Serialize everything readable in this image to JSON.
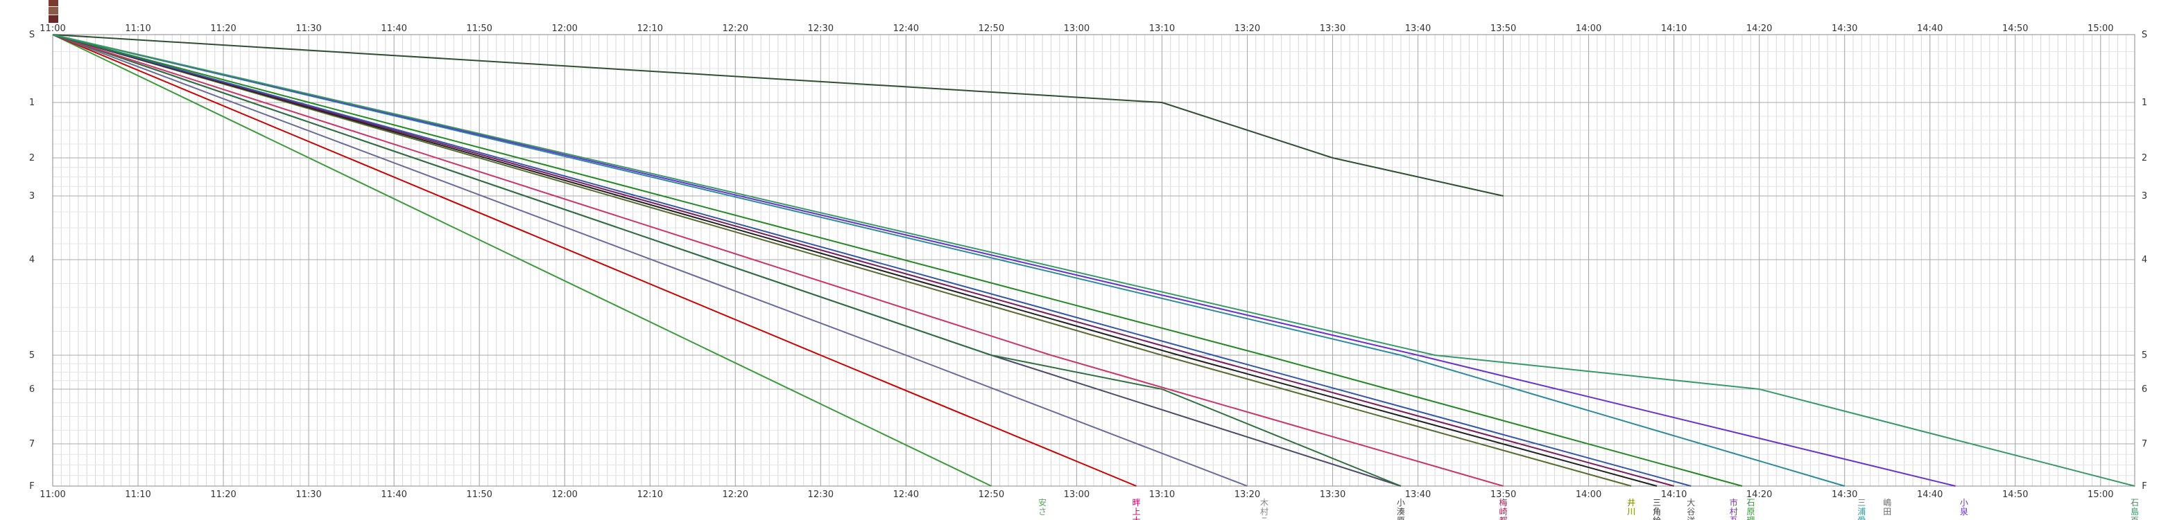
{
  "chart_data": {
    "type": "line",
    "title": "",
    "xlabel": "",
    "ylabel": "",
    "x_ticks": [
      "11:00",
      "11:10",
      "11:20",
      "11:30",
      "11:40",
      "11:50",
      "12:00",
      "12:10",
      "12:20",
      "12:30",
      "12:40",
      "12:50",
      "13:00",
      "13:10",
      "13:20",
      "13:30",
      "13:40",
      "13:50",
      "14:00",
      "14:10",
      "14:20",
      "14:30",
      "14:40",
      "14:50",
      "15:00"
    ],
    "xlim": [
      "11:00",
      "15:04"
    ],
    "y_ticks": [
      "S",
      "1",
      "2",
      "3",
      "4",
      "5",
      "6",
      "7",
      "F"
    ],
    "grid": true,
    "series": [
      {
        "color": "#2f4f2f",
        "points": [
          [
            "11:00",
            "S"
          ],
          [
            "13:10",
            "1"
          ],
          [
            "13:30",
            "2"
          ],
          [
            "13:50",
            "3"
          ]
        ]
      },
      {
        "color": "#3a9a3a",
        "points": [
          [
            "11:00",
            "S"
          ],
          [
            "12:50",
            "F"
          ]
        ]
      },
      {
        "color": "#cc0000",
        "points": [
          [
            "11:00",
            "S"
          ],
          [
            "12:30",
            "5"
          ],
          [
            "13:07",
            "F"
          ]
        ]
      },
      {
        "color": "#6a6a9a",
        "points": [
          [
            "11:00",
            "S"
          ],
          [
            "12:40",
            "5"
          ],
          [
            "13:20",
            "F"
          ]
        ]
      },
      {
        "color": "#4a4a6a",
        "points": [
          [
            "11:00",
            "S"
          ],
          [
            "12:50",
            "5"
          ],
          [
            "13:38",
            "F"
          ]
        ]
      },
      {
        "color": "#2e6e3e",
        "points": [
          [
            "11:00",
            "S"
          ],
          [
            "12:50",
            "5"
          ],
          [
            "13:10",
            "6"
          ],
          [
            "13:38",
            "F"
          ]
        ]
      },
      {
        "color": "#cc3366",
        "points": [
          [
            "11:00",
            "S"
          ],
          [
            "12:57",
            "5"
          ],
          [
            "13:50",
            "F"
          ]
        ]
      },
      {
        "color": "#556b2f",
        "points": [
          [
            "11:00",
            "S"
          ],
          [
            "13:10",
            "5"
          ],
          [
            "14:05",
            "F"
          ]
        ]
      },
      {
        "color": "#1f1f1f",
        "points": [
          [
            "11:00",
            "S"
          ],
          [
            "13:12",
            "5"
          ],
          [
            "14:08",
            "F"
          ]
        ]
      },
      {
        "color": "#7a1a5a",
        "points": [
          [
            "11:00",
            "S"
          ],
          [
            "13:14",
            "5"
          ],
          [
            "14:10",
            "F"
          ]
        ]
      },
      {
        "color": "#3355aa",
        "points": [
          [
            "11:00",
            "S"
          ],
          [
            "13:16",
            "5"
          ],
          [
            "14:12",
            "F"
          ]
        ]
      },
      {
        "color": "#228822",
        "points": [
          [
            "11:00",
            "S"
          ],
          [
            "13:22",
            "5"
          ],
          [
            "14:18",
            "F"
          ]
        ]
      },
      {
        "color": "#2a8a9a",
        "points": [
          [
            "11:00",
            "S"
          ],
          [
            "13:38",
            "5"
          ],
          [
            "14:30",
            "F"
          ]
        ]
      },
      {
        "color": "#6633cc",
        "points": [
          [
            "11:00",
            "S"
          ],
          [
            "13:40",
            "5"
          ],
          [
            "14:43",
            "F"
          ]
        ]
      },
      {
        "color": "#339966",
        "points": [
          [
            "11:00",
            "S"
          ],
          [
            "13:42",
            "5"
          ],
          [
            "14:20",
            "6"
          ],
          [
            "15:04",
            "F"
          ]
        ]
      }
    ],
    "finish_labels": [
      {
        "time": "12:56",
        "text": "安 さ",
        "color": "#55aa55"
      },
      {
        "time": "13:07",
        "text": "畔 上 大",
        "color": "#cc0066"
      },
      {
        "time": "13:22",
        "text": "木 村 こ",
        "color": "#888888"
      },
      {
        "time": "13:38",
        "text": "小 湊 原",
        "color": "#444444"
      },
      {
        "time": "13:50",
        "text": "梅 崎 都",
        "color": "#aa2255"
      },
      {
        "time": "14:05",
        "text": "井 川",
        "color": "#778800"
      },
      {
        "time": "14:08",
        "text": "三 角 絵",
        "color": "#333333"
      },
      {
        "time": "14:12",
        "text": "大 谷 洋",
        "color": "#555555"
      },
      {
        "time": "14:17",
        "text": "市 村 吾",
        "color": "#7733aa"
      },
      {
        "time": "14:19",
        "text": "石 原 理",
        "color": "#339933"
      },
      {
        "time": "14:32",
        "text": "三 浦 愛",
        "color": "#2a9a9a"
      },
      {
        "time": "14:35",
        "text": "嶋 田",
        "color": "#666666"
      },
      {
        "time": "14:44",
        "text": "小 泉",
        "color": "#6633cc"
      },
      {
        "time": "15:04",
        "text": "石 島 百",
        "color": "#339966"
      }
    ]
  }
}
